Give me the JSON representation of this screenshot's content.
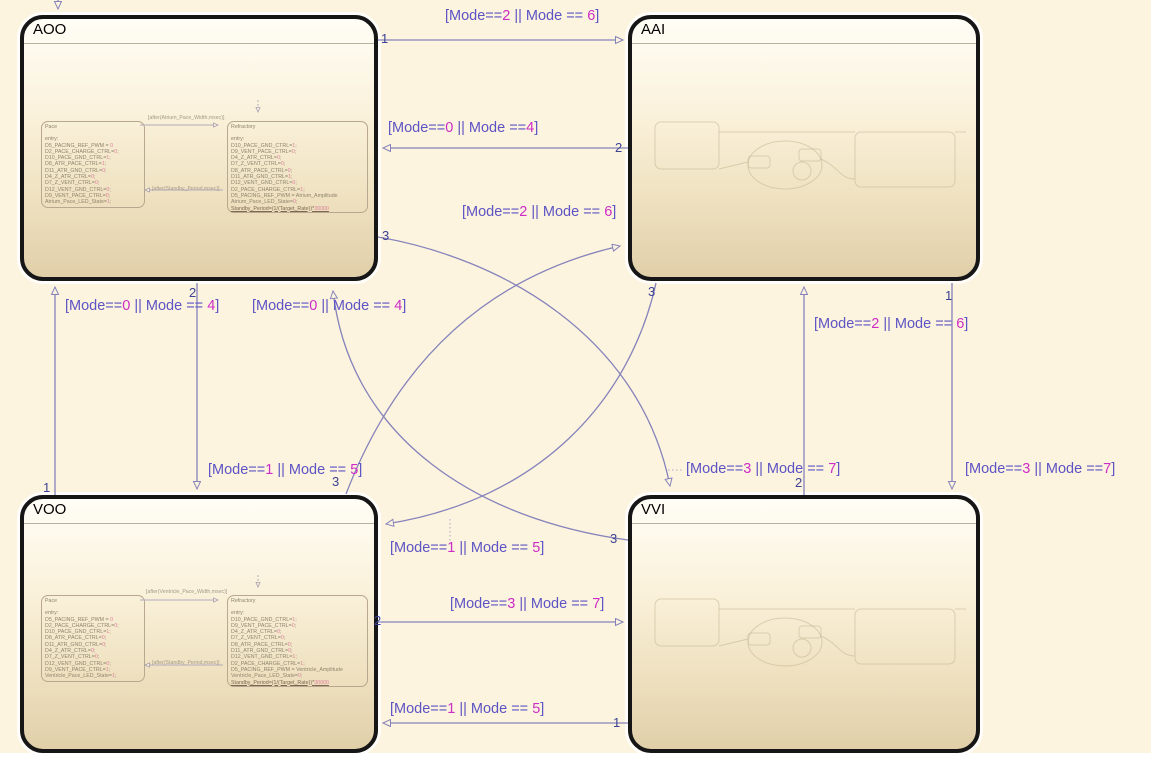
{
  "colors": {
    "canvas_bg": "#fcf4df",
    "wire": "#8683bb",
    "label": "#5d53c4",
    "label_num": "#ce2cc6",
    "seq": "#3d4295",
    "state_border": "#161616",
    "value_pink": "#df7f9e"
  },
  "states": {
    "aoo": {
      "title": "AOO",
      "pace": {
        "title": "Pace",
        "lines": [
          "entry:",
          "D5_PACING_REF_PWM = 0",
          "D2_PACE_CHARGE_CTRL=0;",
          "D10_PACE_GND_CTRL=1;",
          "D8_ATR_PACE_CTRL=1;",
          "D11_ATR_GND_CTRL=0;",
          "D4_Z_ATR_CTRL=0;",
          "D7_Z_VENT_CTRL=0;",
          "D12_VENT_GND_CTRL=0;",
          "D9_VENT_PACE_CTRL=0;",
          "Atrium_Pace_LED_State=1;"
        ]
      },
      "refractory": {
        "title": "Refractory",
        "lines": [
          "entry:",
          "D10_PACE_GND_CTRL=1;",
          "D9_VENT_PACE_CTRL=0;",
          "D4_Z_ATR_CTRL=0;",
          "D7_Z_VENT_CTRL=0;",
          "D8_ATR_PACE_CTRL=0;",
          "D11_ATR_GND_CTRL=1;",
          "D12_VENT_GND_CTRL=0;",
          "D2_PACE_CHARGE_CTRL=1;",
          "D5_PACING_REF_PWM = Atrium_Amplitude",
          "Atrium_Pace_LED_State=0;",
          "Standby_Period=(1/(Target_Rate))*30000"
        ]
      },
      "t_pace_to_refractory": "[after(Atrium_Pace_Width,msec)]",
      "t_refractory_to_pace": "[after(Standby_Period,msec)]"
    },
    "aai": {
      "title": "AAI"
    },
    "voo": {
      "title": "VOO",
      "pace": {
        "title": "Pace",
        "lines": [
          "entry:",
          "D5_PACING_REF_PWM = 0",
          "D2_PACE_CHARGE_CTRL=0;",
          "D10_PACE_GND_CTRL=1;",
          "D8_ATR_PACE_CTRL=0;",
          "D11_ATR_GND_CTRL=0;",
          "D4_Z_ATR_CTRL=0;",
          "D7_Z_VENT_CTRL=0;",
          "D12_VENT_GND_CTRL=0;",
          "D9_VENT_PACE_CTRL=1;",
          "Ventricle_Pace_LED_State=1;"
        ]
      },
      "refractory": {
        "title": "Refractory",
        "lines": [
          "entry:",
          "D10_PACE_GND_CTRL=1;",
          "D9_VENT_PACE_CTRL=0;",
          "D4_Z_ATR_CTRL=0;",
          "D7_Z_VENT_CTRL=0;",
          "D8_ATR_PACE_CTRL=0;",
          "D11_ATR_GND_CTRL=0;",
          "D12_VENT_GND_CTRL=1;",
          "D2_PACE_CHARGE_CTRL=1;",
          "D5_PACING_REF_PWM = Ventricle_Amplitude",
          "Ventricle_Pace_LED_State=0;",
          "Standby_Period=(1/(Target_Rate))*30000"
        ]
      },
      "t_pace_to_refractory": "[after(Ventricle_Pace_Width,msec)]",
      "t_refractory_to_pace": "[after(Standby_Period,msec)]"
    },
    "vvi": {
      "title": "VVI"
    }
  },
  "transitions": {
    "aoo_aai": {
      "seq": "1",
      "parts": [
        {
          "t": "[Mode==",
          "c": ""
        },
        {
          "t": "2",
          "c": "n"
        },
        {
          "t": " || Mode == ",
          "c": ""
        },
        {
          "t": "6",
          "c": "n"
        },
        {
          "t": "]",
          "c": ""
        }
      ]
    },
    "aai_aoo": {
      "seq": "2",
      "parts": [
        {
          "t": "[Mode==",
          "c": ""
        },
        {
          "t": "0",
          "c": "n"
        },
        {
          "t": " || Mode ==",
          "c": ""
        },
        {
          "t": "4",
          "c": "n"
        },
        {
          "t": "]",
          "c": ""
        }
      ]
    },
    "voo_aai": {
      "seq": "3",
      "parts": [
        {
          "t": "[Mode==",
          "c": ""
        },
        {
          "t": "2",
          "c": "n"
        },
        {
          "t": " || Mode == ",
          "c": ""
        },
        {
          "t": "6",
          "c": "n"
        },
        {
          "t": "]",
          "c": ""
        }
      ]
    },
    "voo_aoo": {
      "seq": "1",
      "parts": [
        {
          "t": "[Mode==",
          "c": ""
        },
        {
          "t": "0",
          "c": "n"
        },
        {
          "t": " || Mode == ",
          "c": ""
        },
        {
          "t": "4",
          "c": "n"
        },
        {
          "t": "]",
          "c": ""
        }
      ]
    },
    "vvi_aoo": {
      "seq": "3",
      "parts": [
        {
          "t": "[Mode==",
          "c": ""
        },
        {
          "t": "0",
          "c": "n"
        },
        {
          "t": " || Mode == ",
          "c": ""
        },
        {
          "t": "4",
          "c": "n"
        },
        {
          "t": "]",
          "c": ""
        }
      ]
    },
    "aoo_voo": {
      "seq": "2",
      "parts": [
        {
          "t": "[Mode==",
          "c": ""
        },
        {
          "t": "1",
          "c": "n"
        },
        {
          "t": " || Mode == ",
          "c": ""
        },
        {
          "t": "5",
          "c": "n"
        },
        {
          "t": "]",
          "c": ""
        }
      ]
    },
    "aai_voo": {
      "seq": "3",
      "parts": [
        {
          "t": "[Mode==",
          "c": ""
        },
        {
          "t": "1",
          "c": "n"
        },
        {
          "t": " || Mode == ",
          "c": ""
        },
        {
          "t": "5",
          "c": "n"
        },
        {
          "t": "]",
          "c": ""
        }
      ]
    },
    "vvi_aai": {
      "seq": "2",
      "parts": [
        {
          "t": "[Mode==",
          "c": ""
        },
        {
          "t": "2",
          "c": "n"
        },
        {
          "t": " || Mode == ",
          "c": ""
        },
        {
          "t": "6",
          "c": "n"
        },
        {
          "t": "]",
          "c": ""
        }
      ]
    },
    "aai_vvi": {
      "seq": "1",
      "parts": [
        {
          "t": "[Mode==",
          "c": ""
        },
        {
          "t": "3",
          "c": "n"
        },
        {
          "t": " || Mode ==",
          "c": ""
        },
        {
          "t": "7",
          "c": "n"
        },
        {
          "t": "]",
          "c": ""
        }
      ]
    },
    "aoo_vvi": {
      "seq": "3",
      "parts": [
        {
          "t": "[Mode==",
          "c": ""
        },
        {
          "t": "3",
          "c": "n"
        },
        {
          "t": " || Mode == ",
          "c": ""
        },
        {
          "t": "7",
          "c": "n"
        },
        {
          "t": "]",
          "c": ""
        }
      ]
    },
    "voo_vvi": {
      "seq": "2",
      "parts": [
        {
          "t": "[Mode==",
          "c": ""
        },
        {
          "t": "3",
          "c": "n"
        },
        {
          "t": " || Mode == ",
          "c": ""
        },
        {
          "t": "7",
          "c": "n"
        },
        {
          "t": "]",
          "c": ""
        }
      ]
    },
    "vvi_voo": {
      "seq": "1",
      "parts": [
        {
          "t": "[Mode==",
          "c": ""
        },
        {
          "t": "1",
          "c": "n"
        },
        {
          "t": " || Mode == ",
          "c": ""
        },
        {
          "t": "5",
          "c": "n"
        },
        {
          "t": "]",
          "c": ""
        }
      ]
    }
  }
}
